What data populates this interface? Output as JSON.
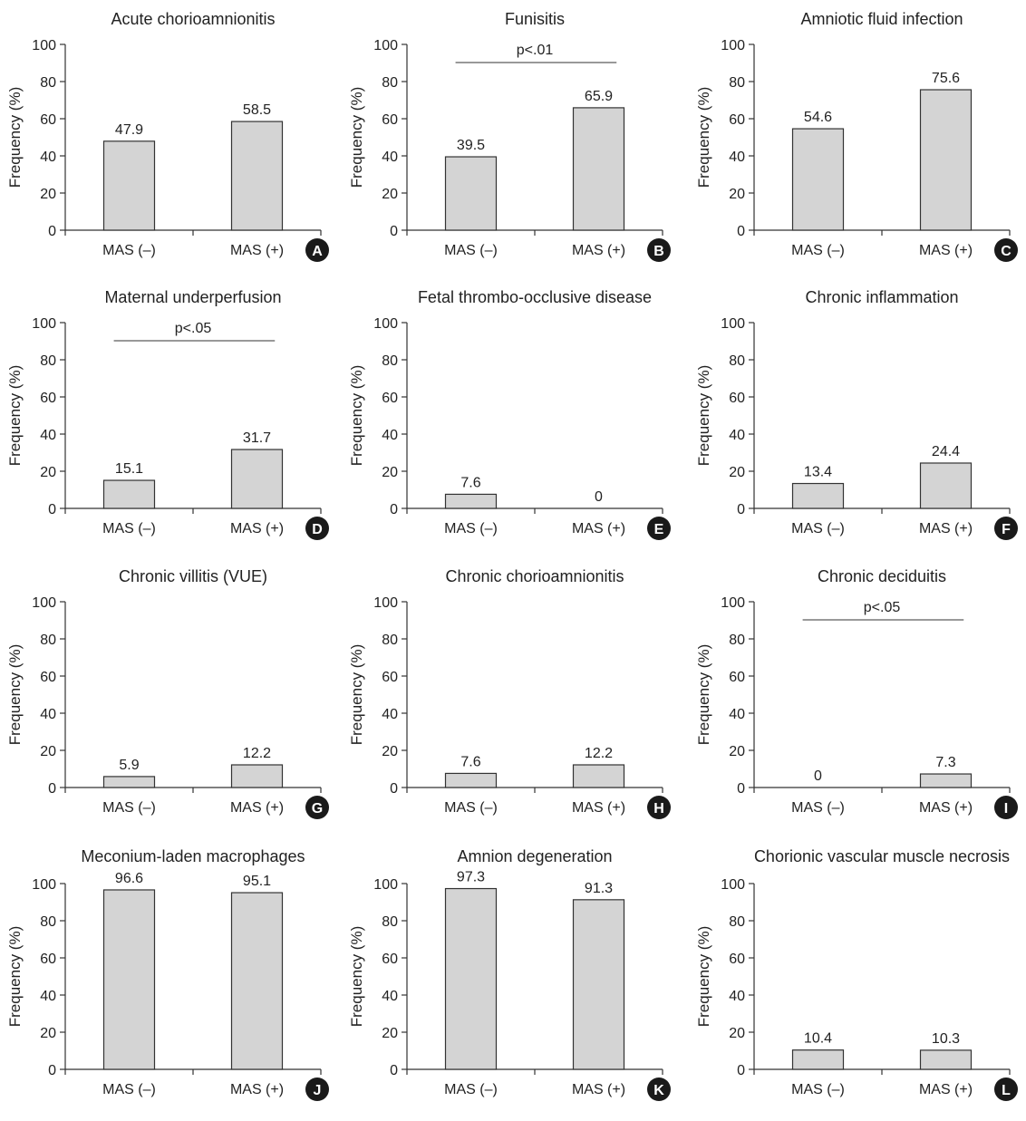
{
  "y_label": "Frequency (%)",
  "categories": [
    "MAS (–)",
    "MAS (+)"
  ],
  "colors": {
    "bar_fill": "#d4d4d4",
    "bar_stroke": "#333333",
    "axis": "#333333",
    "badge": "#1a1a1a",
    "badge_text": "#ffffff"
  },
  "chart_data": [
    {
      "type": "bar",
      "panel": "A",
      "title": "Acute chorioamnionitis",
      "categories": [
        "MAS (–)",
        "MAS (+)"
      ],
      "values": [
        47.9,
        58.5
      ],
      "value_labels": [
        "47.9",
        "58.5"
      ],
      "ylabel": "Frequency (%)",
      "ylim": [
        0,
        100
      ],
      "yticks": [
        0,
        20,
        40,
        60,
        80,
        100
      ],
      "significance": null
    },
    {
      "type": "bar",
      "panel": "B",
      "title": "Funisitis",
      "categories": [
        "MAS (–)",
        "MAS (+)"
      ],
      "values": [
        39.5,
        65.9
      ],
      "value_labels": [
        "39.5",
        "65.9"
      ],
      "ylabel": "Frequency (%)",
      "ylim": [
        0,
        100
      ],
      "yticks": [
        0,
        20,
        40,
        60,
        80,
        100
      ],
      "significance": "p<.01"
    },
    {
      "type": "bar",
      "panel": "C",
      "title": "Amniotic fluid infection",
      "categories": [
        "MAS (–)",
        "MAS (+)"
      ],
      "values": [
        54.6,
        75.6
      ],
      "value_labels": [
        "54.6",
        "75.6"
      ],
      "ylabel": "Frequency (%)",
      "ylim": [
        0,
        100
      ],
      "yticks": [
        0,
        20,
        40,
        60,
        80,
        100
      ],
      "significance": null
    },
    {
      "type": "bar",
      "panel": "D",
      "title": "Maternal underperfusion",
      "categories": [
        "MAS (–)",
        "MAS (+)"
      ],
      "values": [
        15.1,
        31.7
      ],
      "value_labels": [
        "15.1",
        "31.7"
      ],
      "ylabel": "Frequency (%)",
      "ylim": [
        0,
        100
      ],
      "yticks": [
        0,
        20,
        40,
        60,
        80,
        100
      ],
      "significance": "p<.05"
    },
    {
      "type": "bar",
      "panel": "E",
      "title": "Fetal thrombo-occlusive disease",
      "categories": [
        "MAS (–)",
        "MAS (+)"
      ],
      "values": [
        7.6,
        0
      ],
      "value_labels": [
        "7.6",
        "0"
      ],
      "ylabel": "Frequency (%)",
      "ylim": [
        0,
        100
      ],
      "yticks": [
        0,
        20,
        40,
        60,
        80,
        100
      ],
      "significance": null
    },
    {
      "type": "bar",
      "panel": "F",
      "title": "Chronic inflammation",
      "categories": [
        "MAS (–)",
        "MAS (+)"
      ],
      "values": [
        13.4,
        24.4
      ],
      "value_labels": [
        "13.4",
        "24.4"
      ],
      "ylabel": "Frequency (%)",
      "ylim": [
        0,
        100
      ],
      "yticks": [
        0,
        20,
        40,
        60,
        80,
        100
      ],
      "significance": null
    },
    {
      "type": "bar",
      "panel": "G",
      "title": "Chronic villitis (VUE)",
      "categories": [
        "MAS (–)",
        "MAS (+)"
      ],
      "values": [
        5.9,
        12.2
      ],
      "value_labels": [
        "5.9",
        "12.2"
      ],
      "ylabel": "Frequency (%)",
      "ylim": [
        0,
        100
      ],
      "yticks": [
        0,
        20,
        40,
        60,
        80,
        100
      ],
      "significance": null
    },
    {
      "type": "bar",
      "panel": "H",
      "title": "Chronic chorioamnionitis",
      "categories": [
        "MAS (–)",
        "MAS (+)"
      ],
      "values": [
        7.6,
        12.2
      ],
      "value_labels": [
        "7.6",
        "12.2"
      ],
      "ylabel": "Frequency (%)",
      "ylim": [
        0,
        100
      ],
      "yticks": [
        0,
        20,
        40,
        60,
        80,
        100
      ],
      "significance": null
    },
    {
      "type": "bar",
      "panel": "I",
      "title": "Chronic deciduitis",
      "categories": [
        "MAS (–)",
        "MAS (+)"
      ],
      "values": [
        0,
        7.3
      ],
      "value_labels": [
        "0",
        "7.3"
      ],
      "ylabel": "Frequency (%)",
      "ylim": [
        0,
        100
      ],
      "yticks": [
        0,
        20,
        40,
        60,
        80,
        100
      ],
      "significance": "p<.05"
    },
    {
      "type": "bar",
      "panel": "J",
      "title": "Meconium-laden macrophages",
      "categories": [
        "MAS (–)",
        "MAS (+)"
      ],
      "values": [
        96.6,
        95.1
      ],
      "value_labels": [
        "96.6",
        "95.1"
      ],
      "ylabel": "Frequency (%)",
      "ylim": [
        0,
        100
      ],
      "yticks": [
        0,
        20,
        40,
        60,
        80,
        100
      ],
      "significance": null
    },
    {
      "type": "bar",
      "panel": "K",
      "title": "Amnion degeneration",
      "categories": [
        "MAS (–)",
        "MAS (+)"
      ],
      "values": [
        97.3,
        91.3
      ],
      "value_labels": [
        "97.3",
        "91.3"
      ],
      "ylabel": "Frequency (%)",
      "ylim": [
        0,
        100
      ],
      "yticks": [
        0,
        20,
        40,
        60,
        80,
        100
      ],
      "significance": null
    },
    {
      "type": "bar",
      "panel": "L",
      "title": "Chorionic vascular muscle necrosis",
      "categories": [
        "MAS (–)",
        "MAS (+)"
      ],
      "values": [
        10.4,
        10.3
      ],
      "value_labels": [
        "10.4",
        "10.3"
      ],
      "ylabel": "Frequency (%)",
      "ylim": [
        0,
        100
      ],
      "yticks": [
        0,
        20,
        40,
        60,
        80,
        100
      ],
      "significance": null
    }
  ]
}
